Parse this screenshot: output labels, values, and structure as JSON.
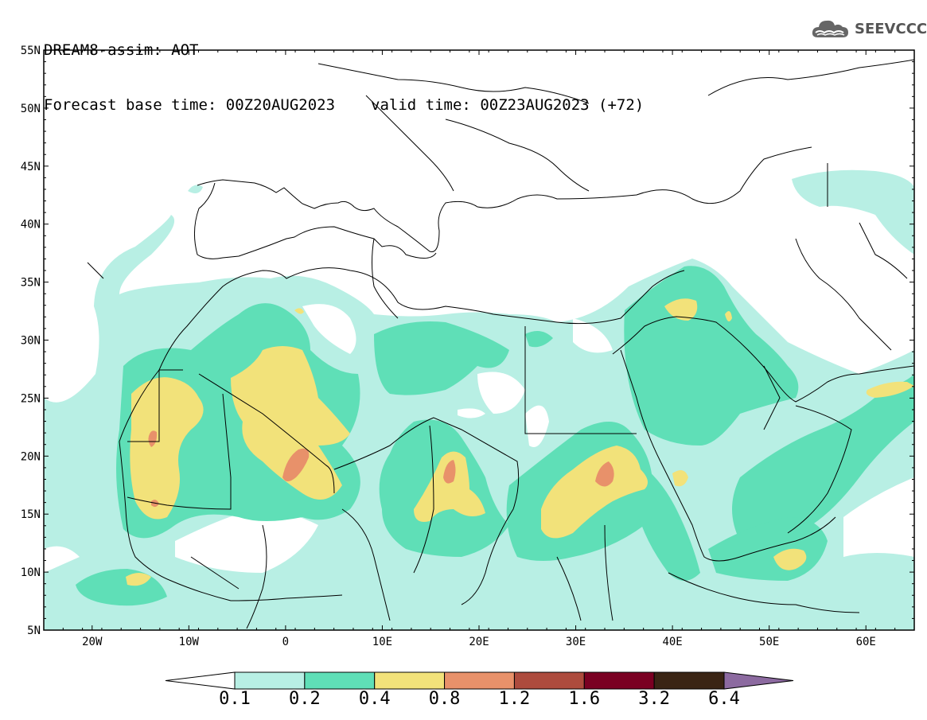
{
  "header": {
    "title": "DREAM8-assim: AOT",
    "base_time": "Forecast base time: 00Z20AUG2023",
    "valid_time": "valid time: 00Z23AUG2023 (+72)"
  },
  "logo": {
    "text": "SEEVCCC",
    "icon": "cloud-icon"
  },
  "map": {
    "lat_ticks": [
      "55N",
      "50N",
      "45N",
      "40N",
      "35N",
      "30N",
      "25N",
      "20N",
      "15N",
      "10N",
      "5N"
    ],
    "lon_ticks": [
      "20W",
      "10W",
      "0",
      "10E",
      "20E",
      "30E",
      "40E",
      "50E",
      "60E"
    ],
    "lat_range": [
      5,
      55
    ],
    "lon_range": [
      -25,
      65
    ]
  },
  "colorbar": {
    "labels": [
      "0.1",
      "0.2",
      "0.4",
      "0.8",
      "1.2",
      "1.6",
      "3.2",
      "6.4"
    ],
    "colors": [
      "#ffffff",
      "#b8efe4",
      "#5fdfb7",
      "#f2e27a",
      "#e8916a",
      "#ad4b3d",
      "#7a0022",
      "#3a2414",
      "#8c6aa0"
    ]
  },
  "levels": {
    "c1": "#b8efe4",
    "c2": "#5fdfb7",
    "c3": "#f2e27a",
    "c4": "#e8916a"
  }
}
